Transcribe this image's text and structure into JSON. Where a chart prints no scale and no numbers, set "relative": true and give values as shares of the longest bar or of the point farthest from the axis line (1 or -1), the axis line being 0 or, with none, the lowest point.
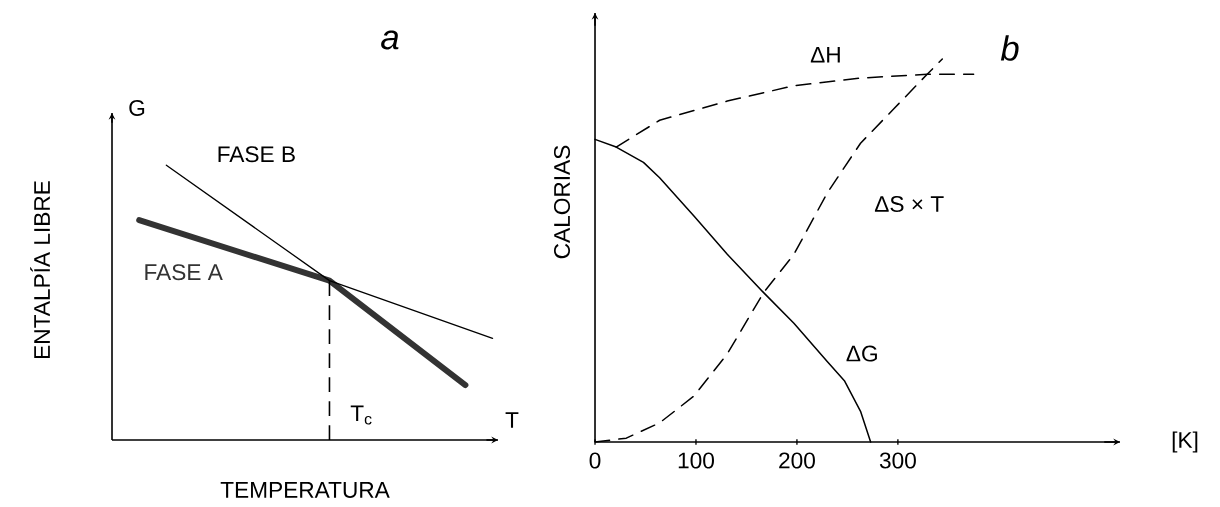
{
  "chart_data": [
    {
      "type": "line",
      "title": "a",
      "xlabel": "TEMPERATURA",
      "ylabel": "ENTALPÍA LIBRE",
      "annotations": [
        "G",
        "T",
        "T$_{c}$"
      ],
      "relative": true,
      "tick_labels": false,
      "categories": [
        null,
        null,
        null,
        null,
        null,
        null,
        null,
        null,
        null,
        null,
        null,
        null,
        null,
        null,
        null
      ],
      "series": [
        {
          "name": "FASE A",
          "color": "#333333",
          "values": [
            null,
            0.8,
            null,
            null,
            null,
            null,
            null,
            null,
            0.58,
            null,
            null,
            null,
            null,
            0.2,
            null
          ]
        },
        {
          "name": "FASE B",
          "color": "#000000",
          "values": [
            null,
            null,
            1.0,
            null,
            null,
            null,
            null,
            null,
            0.58,
            null,
            null,
            null,
            null,
            null,
            0.37
          ]
        }
      ]
    },
    {
      "type": "line",
      "title": "b",
      "xlabel": "[K]",
      "ylabel": "CALORIAS",
      "relative": true,
      "tick_labels": "x",
      "xlim": [
        0,
        520
      ],
      "xticks": [
        0,
        100,
        200,
        300
      ],
      "series": [
        {
          "name": "ΔH",
          "color": "#000000",
          "line_style": "dashed",
          "x": [
            21,
            64,
            131,
            197,
            263,
            329,
            375
          ],
          "values": [
            0.77,
            0.84,
            0.89,
            0.93,
            0.95,
            0.96,
            0.96
          ]
        },
        {
          "name": "ΔS × T",
          "color": "#000000",
          "line_style": "dashed",
          "x": [
            0,
            31,
            64,
            98,
            131,
            167,
            197,
            230,
            263,
            296,
            329,
            344
          ],
          "values": [
            0,
            0.01,
            0.05,
            0.12,
            0.23,
            0.39,
            0.49,
            0.65,
            0.78,
            0.87,
            0.96,
            1.0
          ]
        },
        {
          "name": "ΔG",
          "color": "#000000",
          "line_style": "solid",
          "x": [
            0,
            21,
            48,
            64,
            98,
            131,
            167,
            197,
            230,
            247,
            263,
            273
          ],
          "values": [
            0.79,
            0.77,
            0.73,
            0.69,
            0.59,
            0.49,
            0.39,
            0.31,
            0.21,
            0.16,
            0.08,
            0
          ]
        }
      ]
    }
  ]
}
